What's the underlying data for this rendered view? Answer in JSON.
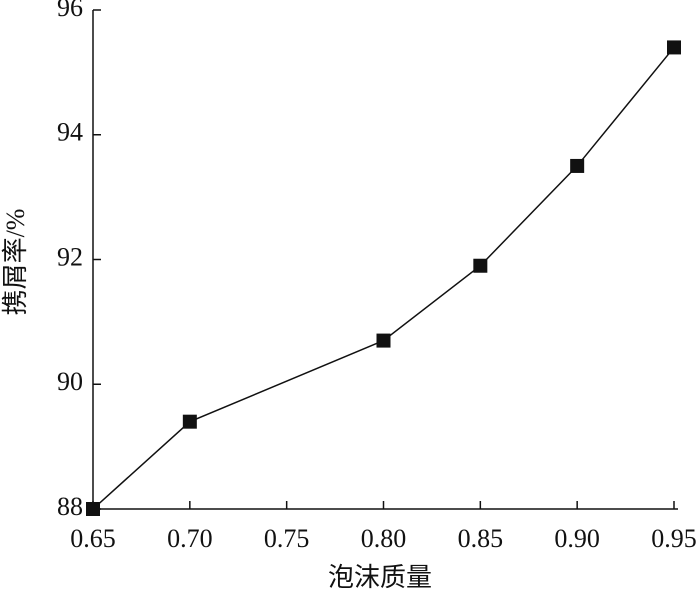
{
  "chart_data": {
    "type": "line",
    "x_label": "泡沫质量",
    "y_label": "携屑率/%",
    "x": [
      0.65,
      0.7,
      0.8,
      0.85,
      0.9,
      0.95
    ],
    "series": [
      {
        "color": "#111111",
        "values": [
          88.0,
          89.4,
          90.7,
          91.9,
          93.5,
          95.4
        ]
      }
    ],
    "xlim": [
      0.65,
      0.95
    ],
    "xticks": [
      0.65,
      {
        "value": 0.7,
        "label": "0.70"
      },
      0.75,
      {
        "value": 0.8,
        "label": "0.80"
      },
      0.85,
      {
        "value": 0.9,
        "label": "0.90"
      },
      0.95
    ],
    "ylim": [
      88,
      96
    ],
    "yticks": [
      88,
      90,
      92,
      94,
      96
    ]
  }
}
